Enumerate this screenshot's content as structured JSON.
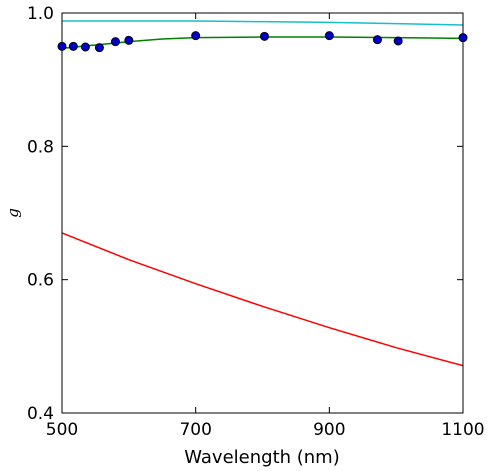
{
  "chart_data": {
    "type": "line",
    "xlabel": "Wavelength (nm)",
    "ylabel": "g",
    "xlim": [
      500,
      1100
    ],
    "ylim": [
      0.4,
      1.0
    ],
    "x_ticks": [
      500,
      700,
      900,
      1100
    ],
    "y_ticks": [
      0.4,
      0.6,
      0.8,
      1.0
    ],
    "x_tick_labels": [
      "500",
      "700",
      "900",
      "1100"
    ],
    "y_tick_labels": [
      "0.4",
      "0.6",
      "0.8",
      "1.0"
    ],
    "grid": false,
    "series": [
      {
        "kind": "line",
        "color": "#17becf",
        "x": [
          500,
          600,
          700,
          800,
          900,
          1000,
          1100
        ],
        "y": [
          0.988,
          0.988,
          0.988,
          0.987,
          0.986,
          0.984,
          0.982
        ]
      },
      {
        "kind": "line",
        "color": "#008000",
        "x": [
          500,
          520,
          540,
          560,
          580,
          600,
          650,
          700,
          800,
          900,
          1000,
          1100
        ],
        "y": [
          0.947,
          0.949,
          0.951,
          0.953,
          0.955,
          0.957,
          0.961,
          0.963,
          0.964,
          0.964,
          0.963,
          0.962
        ]
      },
      {
        "kind": "line",
        "color": "#ff0000",
        "x": [
          500,
          600,
          700,
          800,
          900,
          1000,
          1100
        ],
        "y": [
          0.67,
          0.63,
          0.594,
          0.56,
          0.528,
          0.498,
          0.471
        ]
      },
      {
        "kind": "scatter",
        "color": "#0000cc",
        "edge_color": "#000000",
        "x": [
          500,
          517,
          535,
          556,
          580,
          600,
          700,
          803,
          900,
          972,
          1003,
          1100
        ],
        "y": [
          0.95,
          0.95,
          0.949,
          0.948,
          0.957,
          0.959,
          0.966,
          0.965,
          0.966,
          0.96,
          0.958,
          0.963
        ]
      }
    ]
  }
}
